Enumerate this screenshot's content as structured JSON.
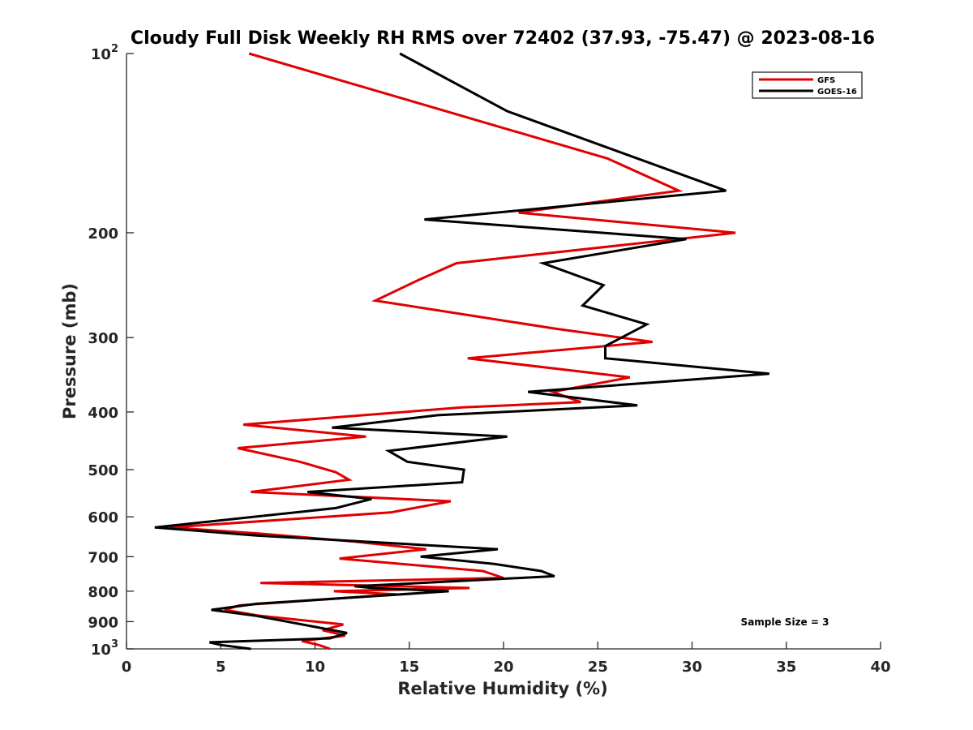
{
  "chart_data": {
    "type": "line",
    "title": "Cloudy Full Disk Weekly RH RMS over 72402 (37.93, -75.47) @ 2023-08-16",
    "xlabel": "Relative Humidity (%)",
    "ylabel": "Pressure (mb)",
    "xlim": [
      0,
      40
    ],
    "ylim": [
      100,
      1000
    ],
    "y_scale": "log",
    "y_reversed": true,
    "x_ticks": [
      "0",
      "5",
      "10",
      "15",
      "20",
      "25",
      "30",
      "35",
      "40"
    ],
    "y_ticks": [
      {
        "value": 100,
        "base": "10",
        "exp": "2"
      },
      {
        "value": 200,
        "label": "200"
      },
      {
        "value": 300,
        "label": "300"
      },
      {
        "value": 400,
        "label": "400"
      },
      {
        "value": 500,
        "label": "500"
      },
      {
        "value": 600,
        "label": "600"
      },
      {
        "value": 700,
        "label": "700"
      },
      {
        "value": 800,
        "label": "800"
      },
      {
        "value": 900,
        "label": "900"
      },
      {
        "value": 1000,
        "base": "10",
        "exp": "3"
      }
    ],
    "grid": false,
    "legend_position": "top-right",
    "annotation": "Sample Size = 3",
    "series": [
      {
        "name": "GFS",
        "color": "#e00000",
        "points": [
          [
            6.5,
            100
          ],
          [
            25.5,
            150
          ],
          [
            29.3,
            170
          ],
          [
            20.8,
            185
          ],
          [
            32.3,
            200
          ],
          [
            17.5,
            225
          ],
          [
            15.5,
            240
          ],
          [
            13.2,
            260
          ],
          [
            22.8,
            290
          ],
          [
            27.9,
            305
          ],
          [
            18.1,
            325
          ],
          [
            26.7,
            350
          ],
          [
            22.6,
            370
          ],
          [
            24.1,
            385
          ],
          [
            17.8,
            393
          ],
          [
            6.2,
            420
          ],
          [
            12.7,
            440
          ],
          [
            5.9,
            460
          ],
          [
            9.2,
            485
          ],
          [
            11.1,
            505
          ],
          [
            11.8,
            520
          ],
          [
            6.6,
            545
          ],
          [
            17.2,
            565
          ],
          [
            14.0,
            590
          ],
          [
            2.3,
            625
          ],
          [
            7.0,
            640
          ],
          [
            12.0,
            660
          ],
          [
            15.9,
            680
          ],
          [
            11.3,
            705
          ],
          [
            18.9,
            740
          ],
          [
            20.0,
            760
          ],
          [
            7.1,
            775
          ],
          [
            18.2,
            790
          ],
          [
            11.0,
            800
          ],
          [
            14.3,
            810
          ],
          [
            6.0,
            845
          ],
          [
            5.2,
            860
          ],
          [
            7.1,
            880
          ],
          [
            11.5,
            910
          ],
          [
            10.4,
            930
          ],
          [
            11.6,
            950
          ],
          [
            9.3,
            970
          ],
          [
            10.2,
            985
          ],
          [
            10.8,
            1000
          ]
        ]
      },
      {
        "name": "GOES-16",
        "color": "#000000",
        "points": [
          [
            14.5,
            100
          ],
          [
            20.2,
            125
          ],
          [
            31.8,
            170
          ],
          [
            15.8,
            190
          ],
          [
            29.7,
            205
          ],
          [
            22.1,
            225
          ],
          [
            25.3,
            245
          ],
          [
            24.2,
            265
          ],
          [
            27.6,
            285
          ],
          [
            25.4,
            310
          ],
          [
            25.4,
            325
          ],
          [
            34.1,
            345
          ],
          [
            21.3,
            370
          ],
          [
            27.1,
            390
          ],
          [
            16.5,
            405
          ],
          [
            10.9,
            425
          ],
          [
            20.2,
            440
          ],
          [
            13.9,
            465
          ],
          [
            14.9,
            485
          ],
          [
            17.9,
            500
          ],
          [
            17.8,
            525
          ],
          [
            9.6,
            545
          ],
          [
            13.0,
            560
          ],
          [
            11.1,
            580
          ],
          [
            1.5,
            625
          ],
          [
            6.9,
            645
          ],
          [
            19.7,
            680
          ],
          [
            15.6,
            700
          ],
          [
            19.5,
            720
          ],
          [
            22.0,
            740
          ],
          [
            22.7,
            755
          ],
          [
            12.1,
            785
          ],
          [
            13.0,
            790
          ],
          [
            17.1,
            800
          ],
          [
            6.9,
            840
          ],
          [
            4.5,
            860
          ],
          [
            6.9,
            880
          ],
          [
            11.7,
            940
          ],
          [
            10.8,
            960
          ],
          [
            4.4,
            975
          ],
          [
            5.0,
            985
          ],
          [
            6.6,
            1000
          ]
        ]
      }
    ]
  }
}
